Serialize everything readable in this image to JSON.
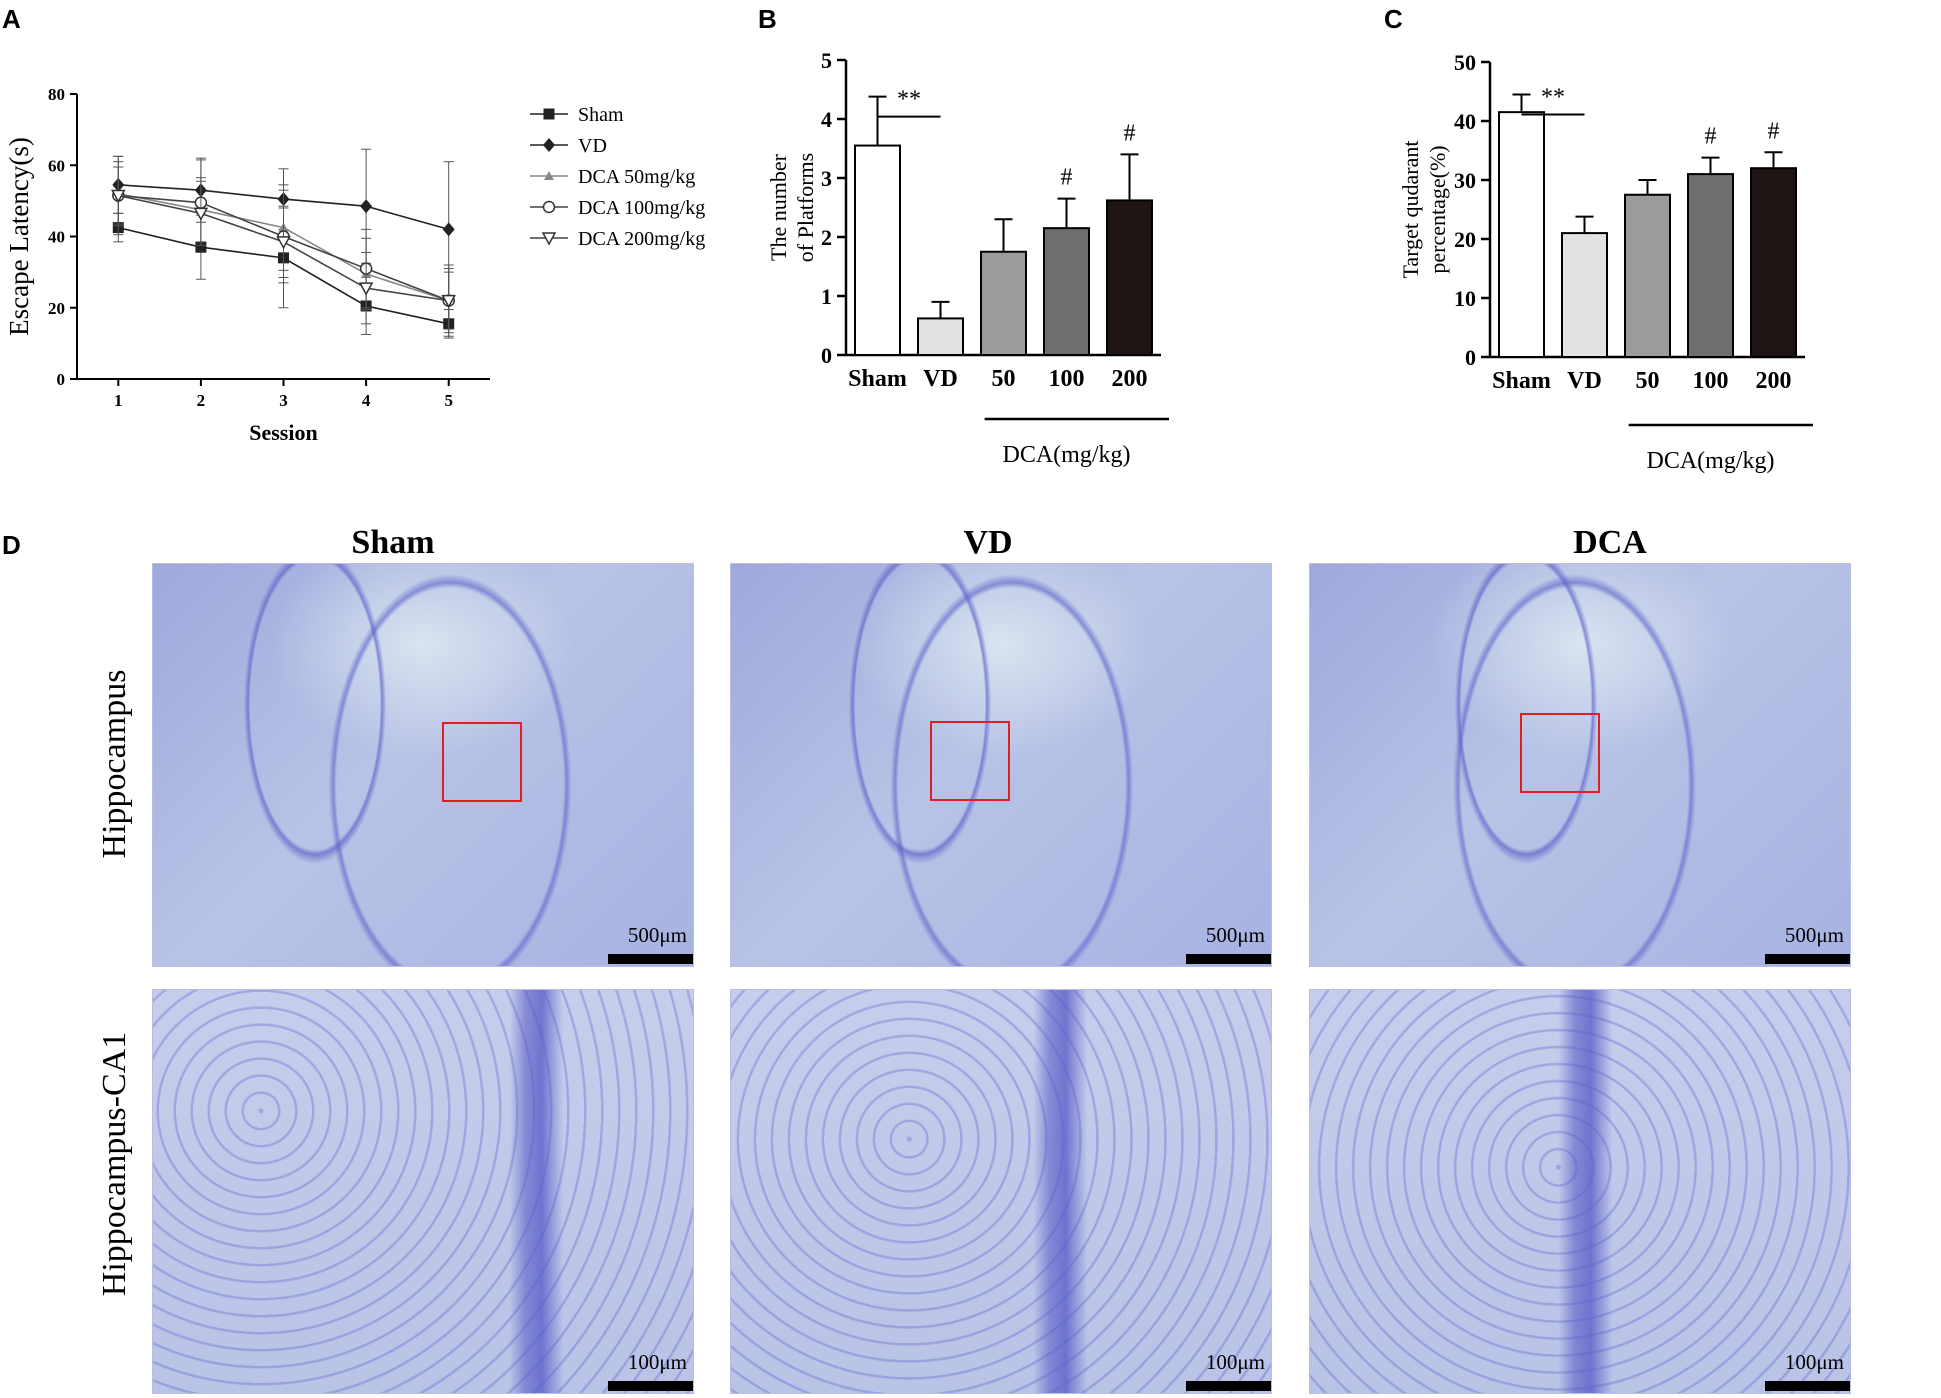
{
  "panels": {
    "A": "A",
    "B": "B",
    "C": "C",
    "D": "D"
  },
  "chart_data": [
    {
      "id": "A",
      "type": "line",
      "xlabel": "Session",
      "ylabel": "Escape Latency(s)",
      "x": [
        1,
        2,
        3,
        4,
        5
      ],
      "xlim": [
        0.5,
        5.5
      ],
      "ylim": [
        0,
        80
      ],
      "yticks": [
        0,
        20,
        40,
        60,
        80
      ],
      "series": [
        {
          "name": "Sham",
          "marker": "square",
          "values": [
            42.5,
            37,
            34,
            20.5,
            15.5
          ],
          "err": [
            4,
            9,
            14,
            8,
            4
          ]
        },
        {
          "name": "VD",
          "marker": "diamond",
          "values": [
            54.5,
            53,
            50.5,
            48.5,
            42
          ],
          "err": [
            8,
            9,
            8.5,
            16,
            19
          ]
        },
        {
          "name": "DCA 50mg/kg",
          "marker": "triangle-up",
          "values": [
            52,
            47.5,
            42.5,
            29.5,
            22
          ],
          "err": [
            9,
            9,
            12,
            10,
            8
          ]
        },
        {
          "name": "DCA 100mg/kg",
          "marker": "circle",
          "values": [
            51.5,
            49.5,
            40,
            31,
            22
          ],
          "err": [
            11,
            12,
            13,
            11,
            10
          ]
        },
        {
          "name": "DCA 200mg/kg",
          "marker": "triangle-down",
          "values": [
            51.5,
            46.5,
            38.5,
            25.5,
            22
          ],
          "err": [
            8,
            9,
            10,
            10,
            9
          ]
        }
      ],
      "legend_position": "right"
    },
    {
      "id": "B",
      "type": "bar",
      "ylabel": "The number of Platforms",
      "categories": [
        "Sham",
        "VD",
        "50",
        "100",
        "200"
      ],
      "values": [
        3.55,
        0.62,
        1.75,
        2.15,
        2.62
      ],
      "err": [
        0.83,
        0.28,
        0.55,
        0.5,
        0.78
      ],
      "colors": [
        "#ffffff",
        "#e2e2e2",
        "#9b9b9b",
        "#6e6e6e",
        "#1e1414"
      ],
      "ylim": [
        0,
        5
      ],
      "yticks": [
        0,
        1,
        2,
        3,
        4,
        5
      ],
      "group_label": "DCA(mg/kg)",
      "significance": [
        {
          "text": "**",
          "between": [
            0,
            1
          ]
        }
      ],
      "annotations": [
        {
          "text": "#",
          "index": 3
        },
        {
          "text": "#",
          "index": 4
        }
      ]
    },
    {
      "id": "C",
      "type": "bar",
      "ylabel": "Target qudarant percentage(%)",
      "categories": [
        "Sham",
        "VD",
        "50",
        "100",
        "200"
      ],
      "values": [
        41.5,
        21,
        27.5,
        31,
        32
      ],
      "err": [
        3,
        2.8,
        2.5,
        2.8,
        2.7
      ],
      "colors": [
        "#ffffff",
        "#e2e2e2",
        "#9b9b9b",
        "#6e6e6e",
        "#1e1414"
      ],
      "ylim": [
        0,
        50
      ],
      "yticks": [
        0,
        10,
        20,
        30,
        40,
        50
      ],
      "group_label": "DCA(mg/kg)",
      "significance": [
        {
          "text": "**",
          "between": [
            0,
            1
          ]
        }
      ],
      "annotations": [
        {
          "text": "#",
          "index": 3
        },
        {
          "text": "#",
          "index": 4
        }
      ]
    }
  ],
  "micrographs": {
    "columns": [
      "Sham",
      "VD",
      "DCA"
    ],
    "rows": [
      "Hippocampus",
      "Hippocampus-CA1"
    ],
    "scale_top": "500μm",
    "scale_bottom": "100μm",
    "stain_color": "#5a5fc8",
    "background_color": "#b9c3e6",
    "roi_color": "#e02020"
  }
}
